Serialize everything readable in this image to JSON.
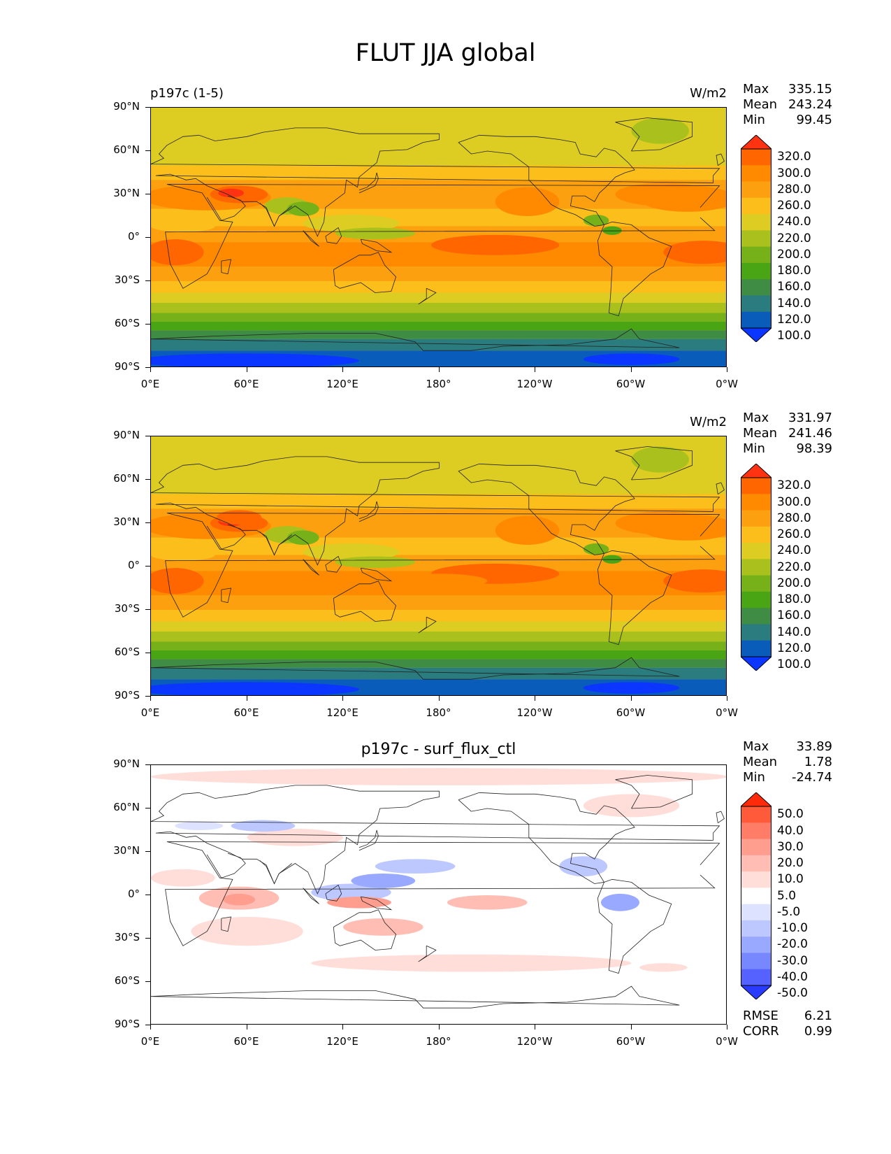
{
  "page_title": "FLUT JJA global",
  "axes": {
    "yticks": [
      "90°N",
      "60°N",
      "30°N",
      "0°",
      "30°S",
      "60°S",
      "90°S"
    ],
    "xticks": [
      "0°E",
      "60°E",
      "120°E",
      "180°",
      "120°W",
      "60°W",
      "0°W"
    ]
  },
  "panels": [
    {
      "left_title": "p197c (1-5)",
      "center_title": "",
      "units": "W/m2",
      "stats": {
        "max_label": "Max",
        "max": "335.15",
        "mean_label": "Mean",
        "mean": "243.24",
        "min_label": "Min",
        "min": "99.45"
      },
      "colorbar": {
        "labels": [
          "320.0",
          "300.0",
          "280.0",
          "260.0",
          "240.0",
          "220.0",
          "200.0",
          "180.0",
          "160.0",
          "140.0",
          "120.0",
          "100.0"
        ],
        "colors": [
          "#ff3311",
          "#ff6600",
          "#ff8a00",
          "#fca010",
          "#fbbe1a",
          "#ddcc22",
          "#aac11d",
          "#77b11a",
          "#4aa515",
          "#3f8c45",
          "#2a7c7e",
          "#0a5cbb",
          "#0b36ff"
        ]
      },
      "metrics": null
    },
    {
      "left_title": "",
      "center_title": "",
      "units": "W/m2",
      "stats": {
        "max_label": "Max",
        "max": "331.97",
        "mean_label": "Mean",
        "mean": "241.46",
        "min_label": "Min",
        "min": "98.39"
      },
      "colorbar": {
        "labels": [
          "320.0",
          "300.0",
          "280.0",
          "260.0",
          "240.0",
          "220.0",
          "200.0",
          "180.0",
          "160.0",
          "140.0",
          "120.0",
          "100.0"
        ],
        "colors": [
          "#ff3311",
          "#ff6600",
          "#ff8a00",
          "#fca010",
          "#fbbe1a",
          "#ddcc22",
          "#aac11d",
          "#77b11a",
          "#4aa515",
          "#3f8c45",
          "#2a7c7e",
          "#0a5cbb",
          "#0b36ff"
        ]
      },
      "metrics": null
    },
    {
      "left_title": "",
      "center_title": "p197c - surf_flux_ctl",
      "units": "",
      "stats": {
        "max_label": "Max",
        "max": "33.89",
        "mean_label": "Mean",
        "mean": "1.78",
        "min_label": "Min",
        "min": "-24.74"
      },
      "colorbar": {
        "labels": [
          "50.0",
          "40.0",
          "30.0",
          "20.0",
          "10.0",
          "5.0",
          "-5.0",
          "-10.0",
          "-20.0",
          "-30.0",
          "-40.0",
          "-50.0"
        ],
        "colors": [
          "#ff2a0a",
          "#ff5a3a",
          "#ff7c66",
          "#ff9d8f",
          "#ffbdb3",
          "#ffdeda",
          "#ffffff",
          "#dde3ff",
          "#bcc8ff",
          "#99a9ff",
          "#7788ff",
          "#5562ff",
          "#2a3aff"
        ]
      },
      "metrics": {
        "rmse_label": "RMSE",
        "rmse": "6.21",
        "corr_label": "CORR",
        "corr": "0.99"
      }
    }
  ],
  "chart_data": [
    {
      "type": "heatmap",
      "title": "p197c (1-5)",
      "variable": "FLUT",
      "season": "JJA",
      "units": "W/m2",
      "lon_range": [
        0,
        360
      ],
      "lat_range": [
        -90,
        90
      ],
      "zonal_band_values": [
        {
          "lat": [
            60,
            90
          ],
          "value": 225
        },
        {
          "lat": [
            15,
            45
          ],
          "value": 265
        },
        {
          "lat": [
            -30,
            15
          ],
          "value": 270
        },
        {
          "lat": [
            -60,
            -30
          ],
          "value": 215
        },
        {
          "lat": [
            -90,
            -60
          ],
          "value": 140
        }
      ],
      "contour_levels": [
        100,
        120,
        140,
        160,
        180,
        200,
        220,
        240,
        260,
        280,
        300,
        320
      ],
      "max": 335.15,
      "mean": 243.24,
      "min": 99.45
    },
    {
      "type": "heatmap",
      "title": "",
      "variable": "FLUT",
      "season": "JJA",
      "units": "W/m2",
      "lon_range": [
        0,
        360
      ],
      "lat_range": [
        -90,
        90
      ],
      "zonal_band_values": [
        {
          "lat": [
            60,
            90
          ],
          "value": 222
        },
        {
          "lat": [
            15,
            45
          ],
          "value": 262
        },
        {
          "lat": [
            -30,
            15
          ],
          "value": 268
        },
        {
          "lat": [
            -60,
            -30
          ],
          "value": 212
        },
        {
          "lat": [
            -90,
            -60
          ],
          "value": 138
        }
      ],
      "contour_levels": [
        100,
        120,
        140,
        160,
        180,
        200,
        220,
        240,
        260,
        280,
        300,
        320
      ],
      "max": 331.97,
      "mean": 241.46,
      "min": 98.39
    },
    {
      "type": "heatmap",
      "title": "p197c - surf_flux_ctl",
      "variable": "FLUT difference",
      "season": "JJA",
      "units": "W/m2",
      "lon_range": [
        0,
        360
      ],
      "lat_range": [
        -90,
        90
      ],
      "contour_levels": [
        -50,
        -40,
        -30,
        -20,
        -10,
        -5,
        5,
        10,
        20,
        30,
        40,
        50
      ],
      "max": 33.89,
      "mean": 1.78,
      "min": -24.74,
      "rmse": 6.21,
      "corr": 0.99
    }
  ]
}
